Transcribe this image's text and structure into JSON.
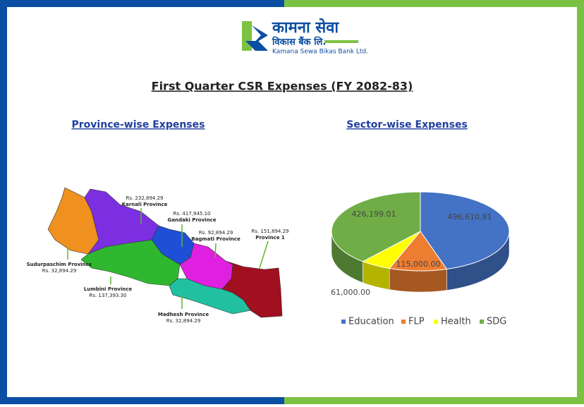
{
  "logo": {
    "nepali_name": "कामना सेवा",
    "nepali_sub": "विकास बैंक लि.",
    "english_name": "Kamana Sewa Bikas Bank Ltd."
  },
  "title": "First Quarter CSR Expenses (FY 2082-83)",
  "province_section": {
    "heading": "Province-wise Expenses",
    "provinces": [
      {
        "name": "Karnali Province",
        "amount": "Rs. 232,894.29"
      },
      {
        "name": "Gandaki Province",
        "amount": "Rs. 417,945.10"
      },
      {
        "name": "Bagmati Province",
        "amount": "Rs. 92,894.29"
      },
      {
        "name": "Province 1",
        "amount": "Rs. 151,894.29"
      },
      {
        "name": "Sudurpaschim Province",
        "amount": "Rs. 32,894.29"
      },
      {
        "name": "Lumbini Province",
        "amount": "Rs. 137,393.30"
      },
      {
        "name": "Madhesh Province",
        "amount": "Rs. 32,894.29"
      }
    ]
  },
  "chart_data": {
    "type": "pie",
    "title": "Sector-wise Expenses",
    "categories": [
      "Education",
      "FLP",
      "Health",
      "SDG"
    ],
    "values": [
      496610.81,
      115000,
      61000,
      426199.01
    ],
    "value_labels": [
      "496,610.81",
      "115,000.00",
      "61,000.00",
      "426,199.01"
    ],
    "colors": [
      "#4472c4",
      "#ed7d31",
      "#ffff00",
      "#70ad47"
    ],
    "legend": "bottom"
  }
}
